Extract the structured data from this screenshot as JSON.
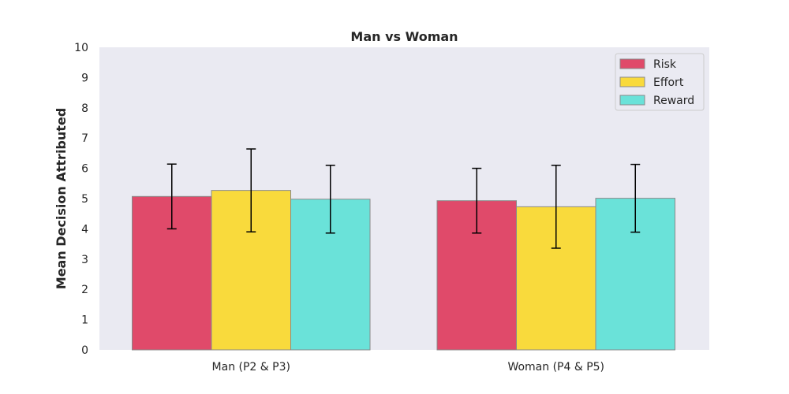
{
  "chart_data": {
    "type": "bar",
    "title": "Man vs Woman",
    "xlabel": "",
    "ylabel": "Mean Decision Attributed",
    "categories": [
      "Man (P2 & P3)",
      "Woman (P4 & P5)"
    ],
    "series": [
      {
        "name": "Risk",
        "color": "#e04a6a",
        "values": [
          5.07,
          4.93
        ],
        "errors": [
          1.07,
          1.07
        ]
      },
      {
        "name": "Effort",
        "color": "#f9da3c",
        "values": [
          5.27,
          4.73
        ],
        "errors": [
          1.37,
          1.37
        ]
      },
      {
        "name": "Reward",
        "color": "#6ae2d9",
        "values": [
          4.98,
          5.01
        ],
        "errors": [
          1.12,
          1.12
        ]
      }
    ],
    "ylim": [
      0,
      10
    ],
    "yticks": [
      0,
      1,
      2,
      3,
      4,
      5,
      6,
      7,
      8,
      9,
      10
    ],
    "grid": false,
    "legend_position": "top-right",
    "background_color": "#eaeaf2",
    "error_bar_color": "#000000"
  }
}
